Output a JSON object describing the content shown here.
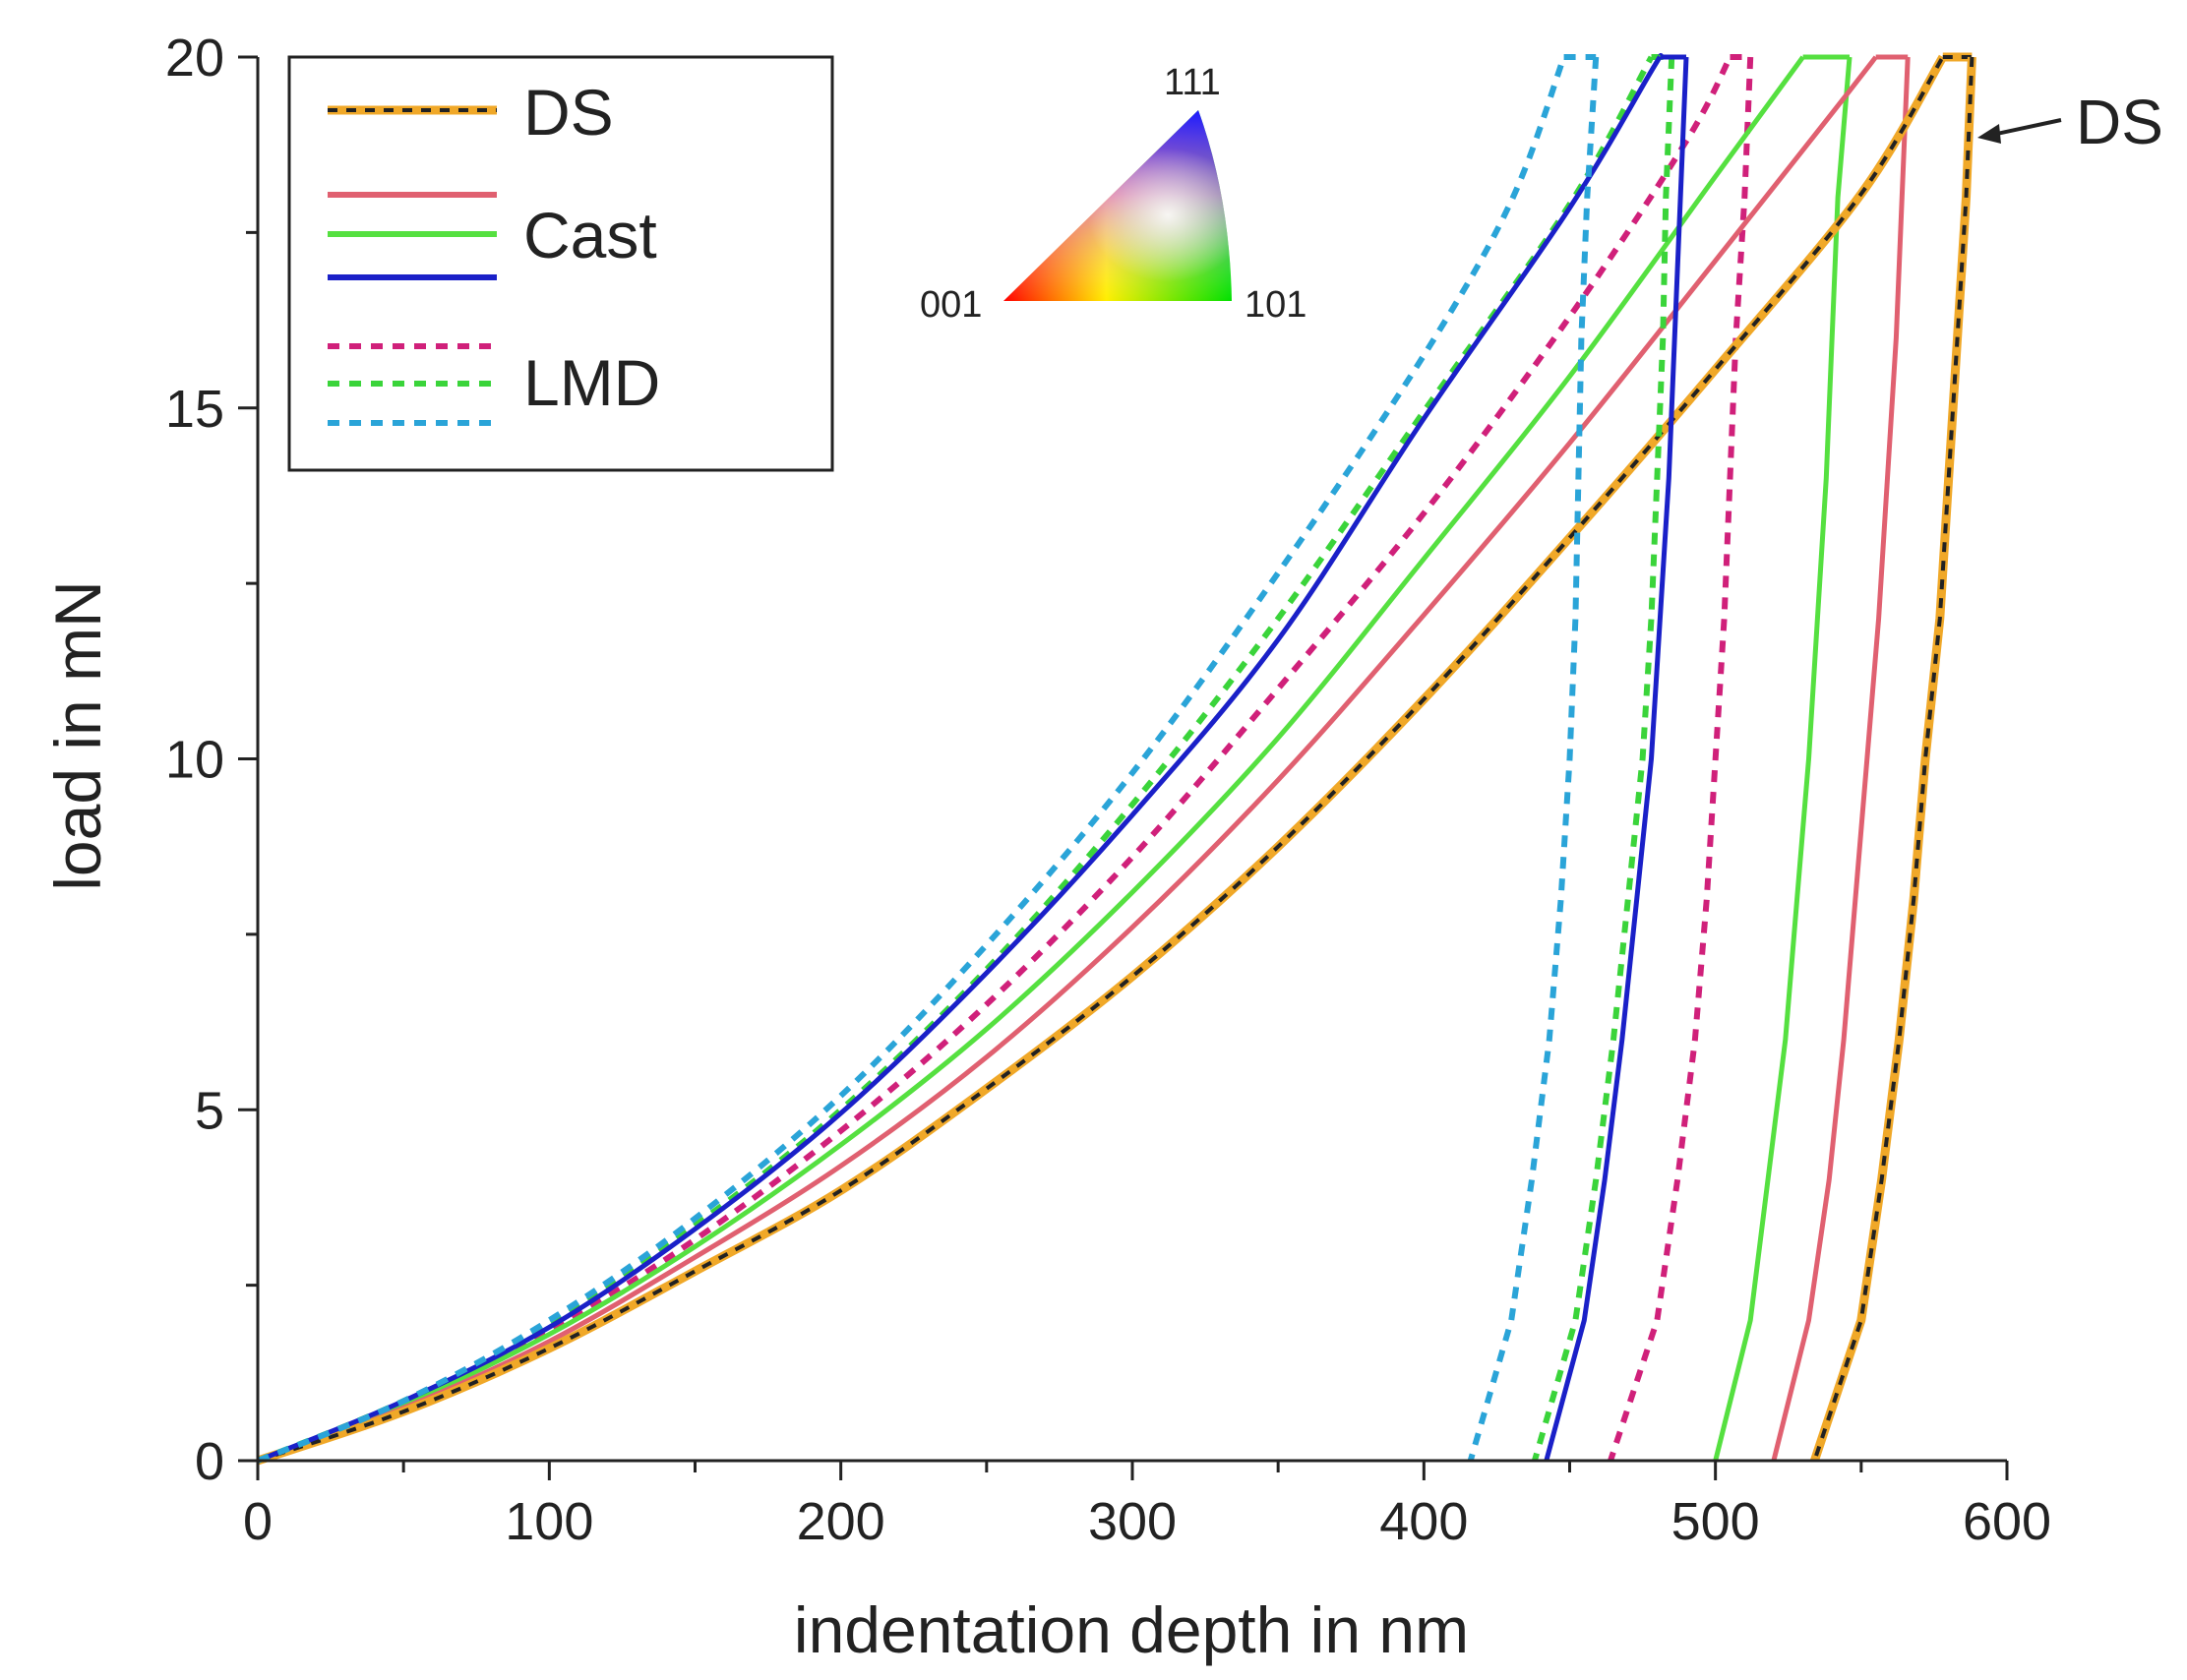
{
  "chart_data": {
    "type": "line",
    "title": "",
    "xlabel": "indentation depth in nm",
    "ylabel": "load in mN",
    "xlim": [
      0,
      600
    ],
    "ylim": [
      0,
      20
    ],
    "x_ticks": [
      0,
      100,
      200,
      300,
      400,
      500,
      600
    ],
    "y_ticks": [
      0,
      5,
      10,
      15,
      20
    ],
    "grid": false,
    "legend_position": "top-left",
    "legend_groups": [
      "DS",
      "Cast",
      "LMD"
    ],
    "ipf_key": {
      "labels": [
        "001",
        "101",
        "111"
      ],
      "colors": {
        "001": "#ff0000",
        "101": "#00e000",
        "111": "#1a1aff",
        "center": "#ffffff"
      }
    },
    "annotation": {
      "text": "DS",
      "points_to": [
        590,
        19
      ]
    },
    "series": [
      {
        "name": "DS",
        "group": "DS",
        "style": "dashed-orange-black",
        "color": "#f0a828",
        "dash_color": "#222222",
        "loading": [
          [
            0,
            0
          ],
          [
            50,
            0.7
          ],
          [
            100,
            1.6
          ],
          [
            150,
            2.7
          ],
          [
            200,
            3.85
          ],
          [
            250,
            5.3
          ],
          [
            300,
            6.9
          ],
          [
            350,
            8.75
          ],
          [
            400,
            10.85
          ],
          [
            450,
            13.15
          ],
          [
            500,
            15.55
          ],
          [
            550,
            18.05
          ],
          [
            578,
            20
          ]
        ],
        "hold": [
          [
            578,
            20
          ],
          [
            588,
            20
          ]
        ],
        "unloading": [
          [
            588,
            20
          ],
          [
            586,
            18
          ],
          [
            583,
            16
          ],
          [
            580,
            14
          ],
          [
            577,
            12
          ],
          [
            572,
            10
          ],
          [
            568,
            8
          ],
          [
            563,
            6
          ],
          [
            557,
            4
          ],
          [
            550,
            2
          ],
          [
            534,
            0
          ]
        ]
      },
      {
        "name": "Cast (red)",
        "group": "Cast",
        "style": "solid",
        "color": "#e06070",
        "loading": [
          [
            0,
            0
          ],
          [
            50,
            0.75
          ],
          [
            100,
            1.7
          ],
          [
            150,
            2.9
          ],
          [
            200,
            4.2
          ],
          [
            250,
            5.75
          ],
          [
            300,
            7.6
          ],
          [
            350,
            9.7
          ],
          [
            400,
            12.05
          ],
          [
            450,
            14.5
          ],
          [
            500,
            17.1
          ],
          [
            540,
            19.2
          ],
          [
            555,
            20
          ]
        ],
        "hold": [
          [
            555,
            20
          ],
          [
            566,
            20
          ]
        ],
        "unloading": [
          [
            566,
            20
          ],
          [
            564,
            18
          ],
          [
            562,
            16
          ],
          [
            559,
            14
          ],
          [
            556,
            12
          ],
          [
            552,
            10
          ],
          [
            548,
            8
          ],
          [
            544,
            6
          ],
          [
            539,
            4
          ],
          [
            532,
            2
          ],
          [
            520,
            0
          ]
        ]
      },
      {
        "name": "Cast (green)",
        "group": "Cast",
        "style": "solid",
        "color": "#55e040",
        "loading": [
          [
            0,
            0
          ],
          [
            50,
            0.8
          ],
          [
            100,
            1.8
          ],
          [
            150,
            3.05
          ],
          [
            200,
            4.5
          ],
          [
            250,
            6.15
          ],
          [
            300,
            8.1
          ],
          [
            350,
            10.3
          ],
          [
            400,
            12.85
          ],
          [
            450,
            15.45
          ],
          [
            500,
            18.3
          ],
          [
            530,
            20
          ]
        ],
        "hold": [
          [
            530,
            20
          ],
          [
            546,
            20
          ]
        ],
        "unloading": [
          [
            546,
            20
          ],
          [
            542,
            18
          ],
          [
            540,
            16
          ],
          [
            538,
            14
          ],
          [
            535,
            12
          ],
          [
            532,
            10
          ],
          [
            528,
            8
          ],
          [
            524,
            6
          ],
          [
            518,
            4
          ],
          [
            512,
            2
          ],
          [
            500,
            0
          ]
        ]
      },
      {
        "name": "Cast (blue)",
        "group": "Cast",
        "style": "solid",
        "color": "#1a20c8",
        "loading": [
          [
            0,
            0
          ],
          [
            50,
            0.85
          ],
          [
            100,
            1.9
          ],
          [
            150,
            3.3
          ],
          [
            200,
            4.95
          ],
          [
            250,
            6.95
          ],
          [
            300,
            9.2
          ],
          [
            350,
            11.7
          ],
          [
            400,
            14.85
          ],
          [
            450,
            17.85
          ],
          [
            478,
            19.8
          ],
          [
            481,
            20
          ]
        ],
        "hold": [
          [
            481,
            20
          ],
          [
            490,
            20
          ]
        ],
        "unloading": [
          [
            490,
            20
          ],
          [
            488,
            18
          ],
          [
            486,
            16
          ],
          [
            484,
            14
          ],
          [
            481,
            12
          ],
          [
            478,
            10
          ],
          [
            473,
            8
          ],
          [
            468,
            6
          ],
          [
            462,
            4
          ],
          [
            455,
            2
          ],
          [
            442,
            0
          ]
        ]
      },
      {
        "name": "LMD (magenta)",
        "group": "LMD",
        "style": "dotted",
        "color": "#d0207a",
        "loading": [
          [
            0,
            0
          ],
          [
            50,
            0.8
          ],
          [
            100,
            1.85
          ],
          [
            150,
            3.15
          ],
          [
            200,
            4.7
          ],
          [
            250,
            6.5
          ],
          [
            300,
            8.6
          ],
          [
            350,
            11.0
          ],
          [
            400,
            13.5
          ],
          [
            450,
            16.3
          ],
          [
            490,
            18.8
          ],
          [
            505,
            20
          ]
        ],
        "hold": [
          [
            505,
            20
          ],
          [
            512,
            20
          ]
        ],
        "unloading": [
          [
            512,
            20
          ],
          [
            510,
            18
          ],
          [
            507,
            16
          ],
          [
            505,
            14
          ],
          [
            503,
            12
          ],
          [
            500,
            10
          ],
          [
            497,
            8
          ],
          [
            493,
            6
          ],
          [
            487,
            4
          ],
          [
            480,
            2
          ],
          [
            464,
            0
          ]
        ]
      },
      {
        "name": "LMD (green)",
        "group": "LMD",
        "style": "dotted",
        "color": "#3ad43a",
        "loading": [
          [
            0,
            0
          ],
          [
            50,
            0.85
          ],
          [
            100,
            1.95
          ],
          [
            150,
            3.35
          ],
          [
            200,
            5.0
          ],
          [
            250,
            7.0
          ],
          [
            300,
            9.35
          ],
          [
            350,
            12.0
          ],
          [
            400,
            14.95
          ],
          [
            450,
            17.9
          ],
          [
            478,
            20
          ]
        ],
        "hold": [
          [
            478,
            20
          ],
          [
            485,
            20
          ]
        ],
        "unloading": [
          [
            485,
            20
          ],
          [
            483,
            18
          ],
          [
            482,
            16
          ],
          [
            480,
            14
          ],
          [
            478,
            12
          ],
          [
            475,
            10
          ],
          [
            470,
            8
          ],
          [
            465,
            6
          ],
          [
            459,
            4
          ],
          [
            452,
            2
          ],
          [
            438,
            0
          ]
        ]
      },
      {
        "name": "LMD (cyan)",
        "group": "LMD",
        "style": "dotted",
        "color": "#2aa4d8",
        "loading": [
          [
            0,
            0
          ],
          [
            50,
            0.85
          ],
          [
            100,
            2.0
          ],
          [
            150,
            3.45
          ],
          [
            200,
            5.2
          ],
          [
            250,
            7.35
          ],
          [
            300,
            9.8
          ],
          [
            350,
            12.65
          ],
          [
            400,
            15.75
          ],
          [
            430,
            17.95
          ],
          [
            448,
            20
          ]
        ],
        "hold": [
          [
            448,
            20
          ],
          [
            459,
            20
          ]
        ],
        "unloading": [
          [
            459,
            20
          ],
          [
            456,
            18
          ],
          [
            454,
            16
          ],
          [
            453,
            14
          ],
          [
            452,
            12
          ],
          [
            450,
            10
          ],
          [
            447,
            8
          ],
          [
            443,
            6
          ],
          [
            437,
            4
          ],
          [
            430,
            2
          ],
          [
            416,
            0
          ]
        ]
      }
    ]
  }
}
